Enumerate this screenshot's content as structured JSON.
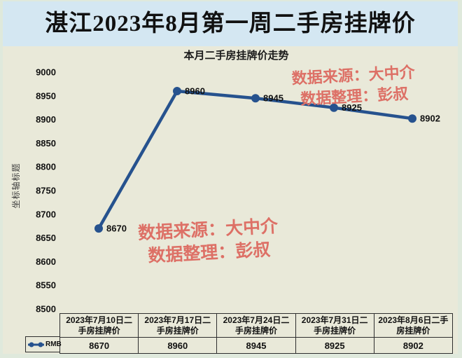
{
  "header": {
    "title": "湛江2023年8月第一周二手房挂牌价"
  },
  "chart_data": {
    "type": "line",
    "title": "本月二手房挂牌价走势",
    "ylabel": "坐标轴标题",
    "categories": [
      "2023年7月10日二手房挂牌价",
      "2023年7月17日二手房挂牌价",
      "2023年7月24日二手房挂牌价",
      "2023年7月31日二手房挂牌价",
      "2023年8月6日二手房挂牌价"
    ],
    "series": [
      {
        "name": "RMB",
        "values": [
          8670,
          8960,
          8945,
          8925,
          8902
        ]
      }
    ],
    "ylim": [
      8500,
      9000
    ],
    "ytick_step": 50,
    "grid": false,
    "legend_position": "bottom-left",
    "marker": "circle",
    "line_color": "#26528e",
    "data_labels": true
  },
  "watermarks": [
    {
      "line1": "数据来源：大中介",
      "line2": "数据整理：彭叔",
      "position": "top-right"
    },
    {
      "line1": "数据来源：大中介",
      "line2": "数据整理：彭叔",
      "position": "center"
    }
  ],
  "colors": {
    "title_band_bg": "#d4e7f2",
    "chart_bg": "#e9e9d9",
    "outer_bg": "#dfe9dc",
    "line": "#26528e",
    "watermark_text": "#dd7066"
  }
}
